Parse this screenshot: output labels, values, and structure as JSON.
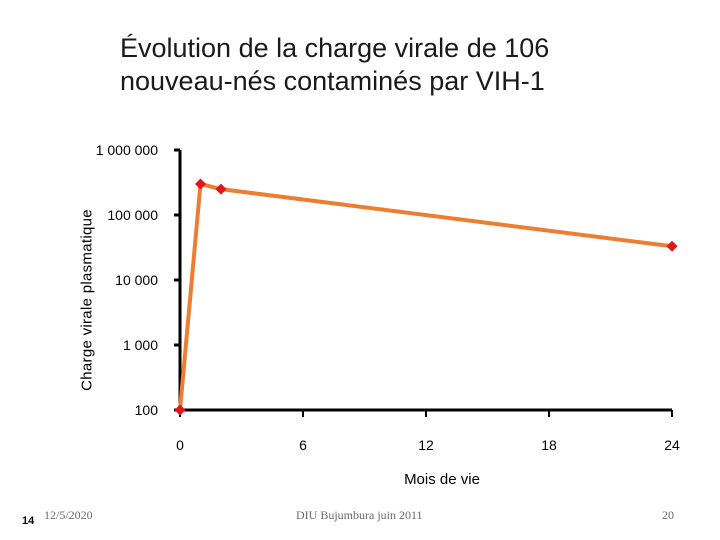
{
  "slide": {
    "title_line1": "Évolution de la charge virale de 106",
    "title_line2": "nouveau-nés contaminés par VIH-1",
    "corner_number": "14",
    "date": "12/5/2020",
    "footer": "DIU Bujumbura juin 2011",
    "page_number": "20"
  },
  "chart_data": {
    "type": "line",
    "title": "Évolution de la charge virale de 106 nouveau-nés contaminés par VIH-1",
    "xlabel": "Mois de vie",
    "ylabel": "Charge virale plasmatique",
    "yscale": "log",
    "xlim": [
      0,
      24
    ],
    "ylim": [
      100,
      1000000
    ],
    "x_ticks": [
      0,
      6,
      12,
      18,
      24
    ],
    "x_tick_labels": [
      "0",
      "6",
      "12",
      "18",
      "24"
    ],
    "y_ticks": [
      100,
      1000,
      10000,
      100000,
      1000000
    ],
    "y_tick_labels": [
      "100",
      "1 000",
      "10 000",
      "100 000",
      "1 000 000"
    ],
    "series": [
      {
        "x": [
          0,
          1,
          2,
          24
        ],
        "y": [
          100,
          300000,
          250000,
          33000
        ],
        "line_color": "#ED7D31",
        "marker_color": "#E0161B"
      }
    ],
    "grid": false,
    "legend": "none"
  }
}
